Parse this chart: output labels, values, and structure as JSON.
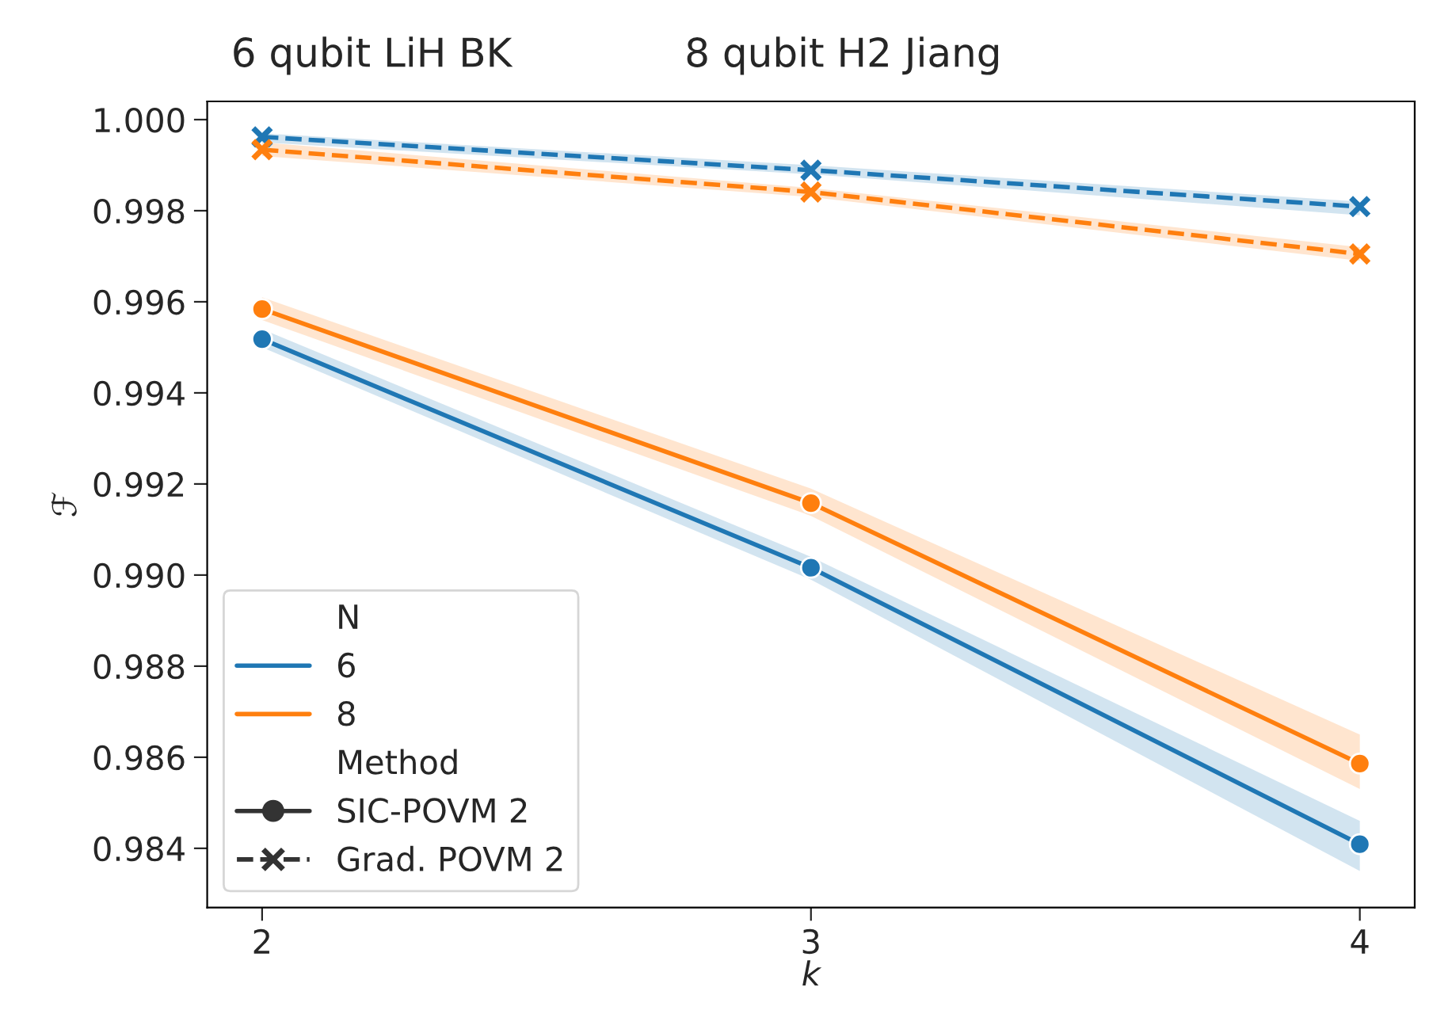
{
  "chart_data": {
    "type": "line",
    "annotations": [
      "6 qubit LiH BK",
      "8 qubit H2 Jiang",
      "Method",
      "SIC-POVM 2",
      "Grad. POVM 2"
    ],
    "xlabel": "k",
    "ylabel": "ℱ",
    "x": [
      2,
      3,
      4
    ],
    "xlim": [
      1.9,
      4.1
    ],
    "xticks": [
      2,
      3,
      4
    ],
    "ylim": [
      0.9827,
      1.0004
    ],
    "yticks": [
      {
        "value": 0.984,
        "label": "0.984"
      },
      {
        "value": 0.986,
        "label": "0.986"
      },
      {
        "value": 0.988,
        "label": "0.988"
      },
      {
        "value": 0.99,
        "label": "0.990"
      },
      {
        "value": 0.992,
        "label": "0.992"
      },
      {
        "value": 0.994,
        "label": "0.994"
      },
      {
        "value": 0.996,
        "label": "0.996"
      },
      {
        "value": 0.998,
        "label": "0.998"
      },
      {
        "value": 1.0,
        "label": "1.000"
      }
    ],
    "grid": false,
    "legend": "bottom left",
    "legend_title": "N",
    "series": [
      {
        "name": "6",
        "color": "#1f77b4",
        "marker": "circle",
        "line_style": "solid",
        "values": [
          0.99518,
          0.99016,
          0.98409
        ],
        "lower": [
          0.995,
          0.9899,
          0.9835
        ],
        "upper": [
          0.9954,
          0.9904,
          0.9846
        ]
      },
      {
        "name": "8",
        "color": "#ff7f0e",
        "marker": "circle",
        "line_style": "solid",
        "values": [
          0.99584,
          0.99158,
          0.98586
        ],
        "lower": [
          0.9956,
          0.9913,
          0.9853
        ],
        "upper": [
          0.9961,
          0.9919,
          0.9865
        ]
      },
      {
        "color": "#1f77b4",
        "marker": "cross",
        "line_style": "dashed",
        "values": [
          0.99962,
          0.99889,
          0.99809
        ],
        "lower": [
          0.9995,
          0.9988,
          0.9979
        ],
        "upper": [
          0.9997,
          0.999,
          0.9982
        ]
      },
      {
        "color": "#ff7f0e",
        "marker": "cross",
        "line_style": "dashed",
        "values": [
          0.99934,
          0.99841,
          0.99705
        ],
        "lower": [
          0.9992,
          0.9983,
          0.9969
        ],
        "upper": [
          0.9995,
          0.9985,
          0.9972
        ]
      }
    ]
  }
}
